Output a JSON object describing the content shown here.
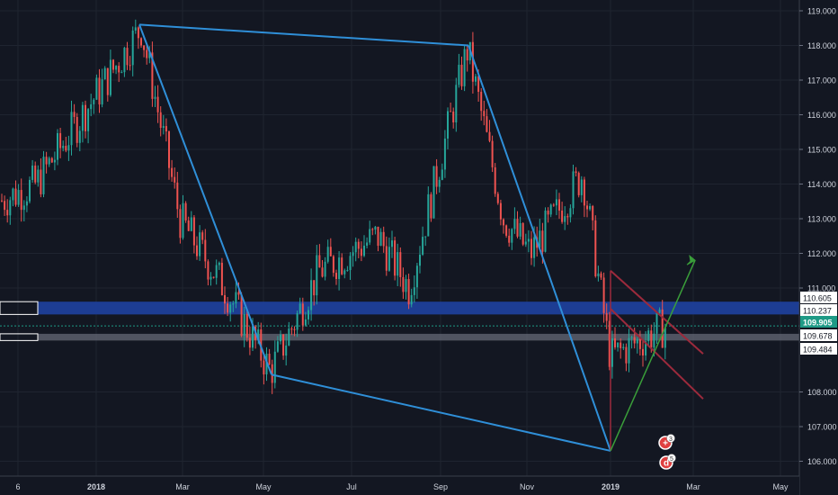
{
  "colors": {
    "background": "#131722",
    "grid": "#1f2430",
    "axis_text": "#cfd3dc",
    "candle_up": "#26a69a",
    "candle_down": "#ef5350",
    "trend_line": "#2f8fd8",
    "zone_fill": "#1e3f9a",
    "zone_border": "#8fa6e8",
    "band_fill": "#6b6f7c",
    "channel_line": "#9c2a3c",
    "arrow_up": "#3a9e3a",
    "current_price_bg": "#1e9a86"
  },
  "chart_data": {
    "type": "candlestick",
    "instrument_note": "",
    "y_axis": {
      "ticks": [
        "119.000",
        "118.000",
        "117.000",
        "116.000",
        "115.000",
        "114.000",
        "113.000",
        "112.000",
        "111.000",
        "108.000",
        "107.000",
        "106.000"
      ],
      "tick_values": [
        119,
        118,
        117,
        116,
        115,
        114,
        113,
        112,
        111,
        108,
        107,
        106
      ],
      "ylim": [
        105.7,
        119.2
      ]
    },
    "x_axis": {
      "ticks": [
        "6",
        "2018",
        "Mar",
        "May",
        "Jul",
        "Sep",
        "Nov",
        "2019",
        "Mar",
        "May"
      ],
      "note": "time axis from Dec 2017 to May 2019"
    },
    "price_labels": [
      {
        "text": "110.605",
        "value": 110.605,
        "style": "zone"
      },
      {
        "text": "110.237",
        "value": 110.237,
        "style": "zone"
      },
      {
        "text": "109.905",
        "value": 109.905,
        "style": "current"
      },
      {
        "text": "109.678",
        "value": 109.678,
        "style": "band"
      },
      {
        "text": "109.484",
        "value": 109.484,
        "style": "band"
      }
    ],
    "anchor_prices": [
      {
        "period": "Dec 2017",
        "close": 113.5
      },
      {
        "period": "early Jan 2018",
        "close": 114.0
      },
      {
        "period": "Jan 2018 high",
        "close": 118.5
      },
      {
        "period": "Mar 2018",
        "close": 113.0
      },
      {
        "period": "Apr 2018",
        "close": 111.0
      },
      {
        "period": "May 2018 low",
        "close": 108.6
      },
      {
        "period": "Jun 2018",
        "close": 111.5
      },
      {
        "period": "Jul 2018",
        "close": 112.5
      },
      {
        "period": "Aug 2018",
        "close": 111.0
      },
      {
        "period": "Sep 2018 high",
        "close": 117.9
      },
      {
        "period": "Oct 2018",
        "close": 113.0
      },
      {
        "period": "Nov 2018",
        "close": 112.0
      },
      {
        "period": "Dec 2018",
        "close": 114.3
      },
      {
        "period": "Jan 2019 low",
        "close": 109.0
      },
      {
        "period": "Feb 2019",
        "close": 109.905
      }
    ],
    "drawings": {
      "trend_polygon": [
        {
          "label": "Jan 2018 high",
          "price": 118.6
        },
        {
          "label": "Sep 2018 high",
          "price": 118.0
        },
        {
          "label": "Jan 2019 low",
          "price": 106.3
        },
        {
          "label": "May 2018 low",
          "price": 108.5
        }
      ],
      "resistance_zone": [
        110.237,
        110.605
      ],
      "support_band": [
        109.484,
        109.678
      ],
      "projected_arrow": {
        "from_price": 106.3,
        "to_price": 111.8
      },
      "falling_channel": [
        {
          "start": 111.5,
          "end": 109.1
        },
        {
          "start": 110.4,
          "end": 107.8
        }
      ]
    },
    "grid": true,
    "legend": "none"
  },
  "markers": [
    {
      "icon": "earnings-icon",
      "badge": "3"
    },
    {
      "icon": "dividend-icon",
      "badge": "5"
    }
  ]
}
